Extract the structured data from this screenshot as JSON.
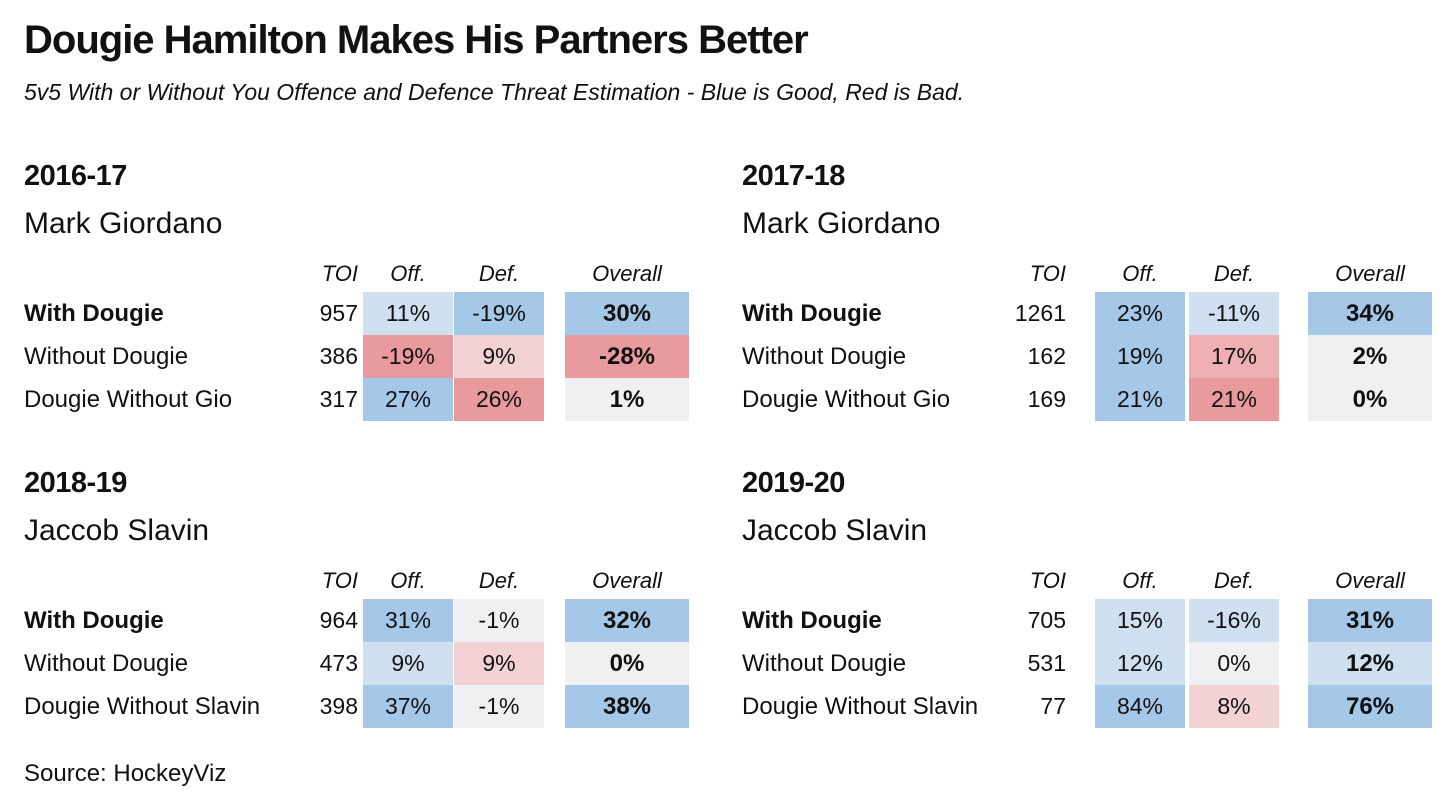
{
  "title": "Dougie Hamilton Makes His Partners Better",
  "subtitle": "5v5 With or Without You Offence and Defence Threat Estimation - Blue is Good, Red is Bad.",
  "source": "Source: HockeyViz",
  "colors": {
    "blue_strong": "#a6c8e8",
    "blue_light": "#cfe0f0",
    "neutral": "#eff0f2",
    "red_light": "#f2d2d4",
    "red_mid": "#eeb0b2",
    "red_strong": "#e99a9c"
  },
  "chart_data": {
    "type": "table",
    "columns": [
      "TOI",
      "Off.",
      "Def.",
      "Overall"
    ],
    "tables": [
      {
        "season": "2016-17",
        "partner": "Mark Giordano",
        "rows": [
          {
            "label": "With Dougie",
            "bold": true,
            "toi": "957",
            "off": "11%",
            "def": "-19%",
            "overall": "30%",
            "off_color": "blue_light",
            "def_color": "blue_strong",
            "overall_color": "blue_strong"
          },
          {
            "label": "Without Dougie",
            "bold": false,
            "toi": "386",
            "off": "-19%",
            "def": "9%",
            "overall": "-28%",
            "off_color": "red_strong",
            "def_color": "red_light",
            "overall_color": "red_strong"
          },
          {
            "label": "Dougie Without Gio",
            "bold": false,
            "toi": "317",
            "off": "27%",
            "def": "26%",
            "overall": "1%",
            "off_color": "blue_strong",
            "def_color": "red_strong",
            "overall_color": "neutral"
          }
        ]
      },
      {
        "season": "2017-18",
        "partner": "Mark Giordano",
        "rows": [
          {
            "label": "With Dougie",
            "bold": true,
            "toi": "1261",
            "off": "23%",
            "def": "-11%",
            "overall": "34%",
            "off_color": "blue_strong",
            "def_color": "blue_light",
            "overall_color": "blue_strong"
          },
          {
            "label": "Without Dougie",
            "bold": false,
            "toi": "162",
            "off": "19%",
            "def": "17%",
            "overall": "2%",
            "off_color": "blue_strong",
            "def_color": "red_mid",
            "overall_color": "neutral"
          },
          {
            "label": "Dougie Without Gio",
            "bold": false,
            "toi": "169",
            "off": "21%",
            "def": "21%",
            "overall": "0%",
            "off_color": "blue_strong",
            "def_color": "red_strong",
            "overall_color": "neutral"
          }
        ]
      },
      {
        "season": "2018-19",
        "partner": "Jaccob Slavin",
        "rows": [
          {
            "label": "With Dougie",
            "bold": true,
            "toi": "964",
            "off": "31%",
            "def": "-1%",
            "overall": "32%",
            "off_color": "blue_strong",
            "def_color": "neutral",
            "overall_color": "blue_strong"
          },
          {
            "label": "Without Dougie",
            "bold": false,
            "toi": "473",
            "off": "9%",
            "def": "9%",
            "overall": "0%",
            "off_color": "blue_light",
            "def_color": "red_light",
            "overall_color": "neutral"
          },
          {
            "label": "Dougie Without Slavin",
            "bold": false,
            "toi": "398",
            "off": "37%",
            "def": "-1%",
            "overall": "38%",
            "off_color": "blue_strong",
            "def_color": "neutral",
            "overall_color": "blue_strong"
          }
        ]
      },
      {
        "season": "2019-20",
        "partner": "Jaccob Slavin",
        "rows": [
          {
            "label": "With Dougie",
            "bold": true,
            "toi": "705",
            "off": "15%",
            "def": "-16%",
            "overall": "31%",
            "off_color": "blue_light",
            "def_color": "blue_light",
            "overall_color": "blue_strong"
          },
          {
            "label": "Without Dougie",
            "bold": false,
            "toi": "531",
            "off": "12%",
            "def": "0%",
            "overall": "12%",
            "off_color": "blue_light",
            "def_color": "neutral",
            "overall_color": "blue_light"
          },
          {
            "label": "Dougie Without Slavin",
            "bold": false,
            "toi": "77",
            "off": "84%",
            "def": "8%",
            "overall": "76%",
            "off_color": "blue_strong",
            "def_color": "red_light",
            "overall_color": "blue_strong"
          }
        ]
      }
    ]
  }
}
